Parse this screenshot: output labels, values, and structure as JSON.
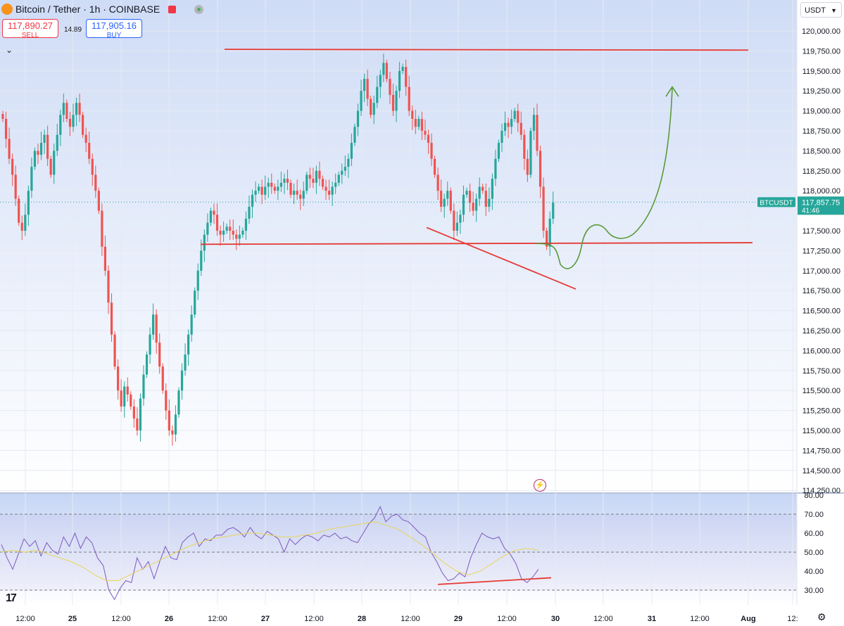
{
  "header": {
    "title": "Bitcoin / Tether · 1h · COINBASE",
    "sell_price": "117,890.27",
    "sell_label": "SELL",
    "spread": "14.89",
    "buy_price": "117,905.16",
    "buy_label": "BUY",
    "currency": "USDT"
  },
  "colors": {
    "bull": "#26a69a",
    "bear": "#ef5350",
    "annotation_red": "#e53935",
    "projection_green": "#5a9a3a",
    "rsi_line": "#7e57c2",
    "rsi_ma": "#e8d65a",
    "price_label_bg": "#26a69a",
    "background_top": "#cfdcf6",
    "background_bottom": "#ffffff"
  },
  "icons": {
    "flash": "lightning-icon",
    "settings": "gear-icon",
    "logo": "tradingview-logo"
  },
  "chart_data": [
    {
      "type": "candlestick",
      "symbol": "BTCUSDT",
      "last_price": "117,857.75",
      "countdown": "41:46",
      "x_ticks": [
        "12:00",
        "25",
        "12:00",
        "26",
        "12:00",
        "27",
        "12:00",
        "28",
        "12:00",
        "29",
        "12:00",
        "30",
        "12:00",
        "31",
        "12:00",
        "Aug",
        "12:"
      ],
      "y_ticks": [
        "120,000.00",
        "119,750.00",
        "119,500.00",
        "119,250.00",
        "119,000.00",
        "118,750.00",
        "118,500.00",
        "118,250.00",
        "118,000.00",
        "117,750.00",
        "117,500.00",
        "117,250.00",
        "117,000.00",
        "116,750.00",
        "116,500.00",
        "116,250.00",
        "116,000.00",
        "115,750.00",
        "115,500.00",
        "115,250.00",
        "115,000.00",
        "114,750.00",
        "114,500.00",
        "114,250.00"
      ],
      "ylim": [
        114250,
        120150
      ],
      "close_series": [
        118900,
        118650,
        118400,
        118200,
        117900,
        117600,
        117500,
        117700,
        118000,
        118300,
        118500,
        118450,
        118600,
        118700,
        118400,
        118200,
        118500,
        118700,
        118950,
        119100,
        118900,
        118800,
        118950,
        119100,
        118950,
        118700,
        118600,
        118400,
        118200,
        118000,
        117750,
        117300,
        117000,
        116600,
        116200,
        115800,
        115500,
        115300,
        115550,
        115450,
        115300,
        115150,
        115000,
        115400,
        115700,
        115950,
        116200,
        116450,
        116100,
        115800,
        115500,
        115250,
        115000,
        114950,
        115200,
        115500,
        115750,
        115950,
        116200,
        116450,
        116750,
        117000,
        117250,
        117450,
        117600,
        117750,
        117700,
        117500,
        117450,
        117500,
        117550,
        117500,
        117450,
        117400,
        117450,
        117500,
        117650,
        117800,
        117950,
        118000,
        118050,
        117950,
        118050,
        118100,
        118050,
        118000,
        118050,
        118100,
        118150,
        118100,
        117950,
        118000,
        117950,
        117900,
        118000,
        118200,
        118150,
        118100,
        118250,
        118150,
        118050,
        118000,
        117950,
        118050,
        118100,
        118200,
        118250,
        118300,
        118400,
        118600,
        118800,
        119000,
        119250,
        119400,
        119150,
        118950,
        119100,
        119300,
        119450,
        119600,
        119400,
        119200,
        119000,
        119250,
        119500,
        119550,
        119300,
        119000,
        118900,
        118800,
        118900,
        118750,
        118700,
        118600,
        118400,
        118200,
        118000,
        117800,
        117900,
        118000,
        117750,
        117500,
        117600,
        117700,
        117950,
        118000,
        117850,
        117750,
        117900,
        118050,
        118000,
        117800,
        117900,
        118150,
        118400,
        118600,
        118750,
        118850,
        118800,
        118900,
        119000,
        118850,
        118700,
        118400,
        118200,
        118750,
        118950,
        118500,
        118050,
        117500,
        117300,
        117650,
        117850
      ],
      "annotations": {
        "resistance_line": "horizontal red line near 119,760",
        "support_line": "horizontal red line near 117,340",
        "trend_line": "descending red line from ~117,540 to ~116,760",
        "projection": "green curve dipping to ~117,050 then rising to ~119,330 with arrow"
      }
    },
    {
      "type": "line",
      "name": "RSI",
      "y_ticks": [
        "80.00",
        "70.00",
        "60.00",
        "50.00",
        "40.00",
        "30.00"
      ],
      "ylim": [
        25,
        80
      ],
      "bands": [
        30,
        50,
        70
      ],
      "values": [
        54,
        47,
        41,
        49,
        57,
        53,
        56,
        48,
        55,
        51,
        49,
        58,
        53,
        60,
        52,
        58,
        55,
        47,
        43,
        30,
        25,
        31,
        35,
        34,
        47,
        41,
        45,
        36,
        45,
        53,
        47,
        46,
        55,
        58,
        60,
        53,
        57,
        56,
        59,
        59,
        62,
        63,
        61,
        58,
        63,
        59,
        57,
        61,
        59,
        57,
        50,
        57,
        54,
        57,
        59,
        58,
        56,
        59,
        58,
        60,
        57,
        58,
        56,
        55,
        60,
        65,
        68,
        74,
        66,
        69,
        70,
        67,
        66,
        63,
        60,
        58,
        50,
        45,
        39,
        35,
        36,
        39,
        37,
        47,
        54,
        60,
        58,
        57,
        58,
        52,
        49,
        44,
        36,
        34,
        37,
        41
      ],
      "ma_values": [
        50,
        51,
        50,
        51,
        49,
        47,
        45,
        42,
        38,
        35,
        35,
        38,
        41,
        44,
        47,
        50,
        53,
        55,
        57,
        58,
        59,
        60,
        60,
        59,
        58,
        58,
        59,
        60,
        62,
        63,
        64,
        65,
        66,
        64,
        62,
        58,
        54,
        49,
        44,
        40,
        38,
        40,
        44,
        48,
        51,
        52,
        51
      ]
    }
  ]
}
